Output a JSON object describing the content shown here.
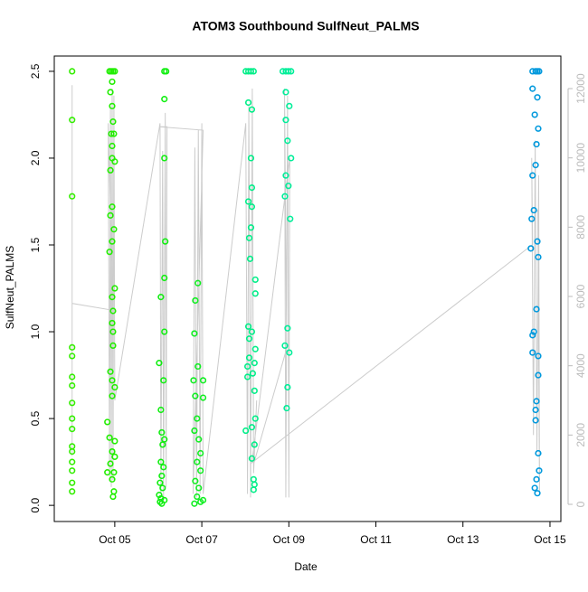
{
  "chart_data": {
    "type": "scatter",
    "title": "ATOM3 Southbound SulfNeut_PALMS",
    "x_label": "Date",
    "y_label": "SulfNeut_PALMS",
    "xlim": [
      3.61,
      15.25
    ],
    "ylim": [
      -0.093,
      2.588
    ],
    "y2lim": [
      -496,
      12940
    ],
    "xticks": [
      {
        "value": 5,
        "label": "Oct 05"
      },
      {
        "value": 7,
        "label": "Oct 07"
      },
      {
        "value": 9,
        "label": "Oct 09"
      },
      {
        "value": 11,
        "label": "Oct 11"
      },
      {
        "value": 13,
        "label": "Oct 13"
      },
      {
        "value": 15,
        "label": "Oct 15"
      }
    ],
    "yticks": [
      {
        "value": 0,
        "label": "0.0"
      },
      0.5,
      {
        "value": 1,
        "label": "1.0"
      },
      1.5,
      {
        "value": 2,
        "label": "2.0"
      },
      2.5
    ],
    "y2ticks": [
      0,
      2000,
      4000,
      6000,
      8000,
      10000,
      12000
    ],
    "series": [
      {
        "type": "line",
        "axis": "y2",
        "color": "#cccccc",
        "x": [
          4.02,
          4.02,
          4.02,
          4.96,
          4.85,
          4.88,
          4.9,
          4.92,
          4.94,
          4.96,
          4.98,
          5.0,
          6.04,
          6.06,
          6.1,
          6.12,
          6.16,
          6.18,
          6.2,
          6.02,
          7.03,
          6.8,
          6.84,
          6.88,
          6.92,
          6.96,
          7.0,
          7.03,
          8.01,
          8.05,
          8.08,
          8.12,
          8.16,
          8.19,
          8.26,
          8.2,
          8.95,
          8.9,
          8.93,
          8.97,
          9.0,
          9.02,
          8.15,
          14.6,
          14.58,
          14.62,
          14.66,
          14.7,
          14.74,
          14.76,
          14.72
        ],
        "values": [
          1400,
          12100,
          5800,
          5600,
          11000,
          800,
          11500,
          500,
          12000,
          700,
          11800,
          3000,
          11000,
          300,
          10200,
          200,
          11300,
          500,
          10900,
          10900,
          10800,
          300,
          10300,
          200,
          10800,
          300,
          11000,
          300,
          11000,
          300,
          11500,
          200,
          12000,
          900,
          3000,
          1200,
          4500,
          12000,
          200,
          11800,
          200,
          10000,
          1200,
          7500,
          10000,
          2000,
          10500,
          1500,
          9500,
          300,
          8500
        ]
      },
      {
        "color": "#33ee00",
        "x": [
          4.02,
          4.02,
          4.02,
          4.02,
          4.02,
          4.02,
          4.02,
          4.02,
          4.02,
          4.02,
          4.02,
          4.02,
          4.02,
          4.02,
          4.02,
          4.02
        ],
        "values": [
          2.5,
          2.22,
          1.78,
          0.91,
          0.86,
          0.74,
          0.69,
          0.59,
          0.5,
          0.44,
          0.34,
          0.31,
          0.25,
          0.2,
          0.13,
          0.08
        ]
      },
      {
        "color": "#22ee00",
        "x": [
          4.88,
          4.92,
          4.96,
          5.0,
          4.94,
          4.9,
          4.94,
          4.96,
          4.92,
          4.98,
          4.94,
          4.94,
          5.0,
          4.9,
          4.94,
          4.9,
          4.98,
          4.94,
          4.88,
          5.0,
          4.94,
          4.96,
          4.94,
          4.96,
          4.96,
          4.9,
          4.94,
          5.0,
          4.94,
          4.83,
          4.88,
          5.0,
          4.94,
          5.0,
          4.9,
          4.98,
          4.83,
          4.94,
          4.98,
          4.96
        ],
        "values": [
          2.5,
          2.5,
          2.5,
          2.5,
          2.44,
          2.38,
          2.3,
          2.21,
          2.14,
          2.14,
          2.07,
          2.0,
          1.98,
          1.93,
          1.72,
          1.67,
          1.59,
          1.52,
          1.46,
          1.25,
          1.2,
          1.12,
          1.05,
          1.0,
          0.92,
          0.77,
          0.72,
          0.68,
          0.63,
          0.48,
          0.39,
          0.37,
          0.31,
          0.28,
          0.24,
          0.19,
          0.19,
          0.15,
          0.08,
          0.05
        ]
      },
      {
        "color": "#11ee11",
        "x": [
          6.14,
          6.18,
          6.14,
          6.14,
          6.16,
          6.14,
          6.06,
          6.14,
          6.02,
          6.12,
          6.06,
          6.08,
          6.14,
          6.1,
          6.06,
          6.12,
          6.08,
          6.04,
          6.1,
          6.02,
          6.06,
          6.04,
          6.08,
          6.14
        ],
        "values": [
          2.5,
          2.5,
          2.34,
          2.0,
          1.52,
          1.31,
          1.2,
          1.0,
          0.82,
          0.72,
          0.55,
          0.42,
          0.38,
          0.35,
          0.25,
          0.22,
          0.17,
          0.13,
          0.1,
          0.06,
          0.04,
          0.02,
          0.01,
          0.03
        ]
      },
      {
        "color": "#11ee22",
        "x": [
          6.91,
          6.85,
          6.83,
          6.91,
          7.03,
          6.81,
          6.85,
          7.03,
          6.89,
          6.83,
          6.93,
          6.97,
          6.89,
          6.97,
          6.85,
          6.93,
          6.89,
          6.97,
          6.83,
          7.03
        ],
        "values": [
          1.28,
          1.18,
          0.99,
          0.8,
          0.72,
          0.72,
          0.63,
          0.62,
          0.5,
          0.43,
          0.38,
          0.3,
          0.25,
          0.2,
          0.14,
          0.1,
          0.05,
          0.02,
          0.01,
          0.03
        ]
      },
      {
        "color": "#00ee88",
        "x": [
          8.01,
          8.07,
          8.13,
          8.19,
          8.07,
          8.15,
          8.13,
          8.15,
          8.07,
          8.15,
          8.13,
          8.09,
          8.11,
          8.23,
          8.23,
          8.07,
          8.15,
          8.09,
          8.23,
          8.09,
          8.21,
          8.05,
          8.17,
          8.05,
          8.21,
          8.23,
          8.15,
          8.01,
          8.21,
          8.15,
          8.19,
          8.21,
          8.19
        ],
        "values": [
          2.5,
          2.5,
          2.5,
          2.5,
          2.32,
          2.28,
          2.0,
          1.83,
          1.75,
          1.72,
          1.6,
          1.54,
          1.42,
          1.3,
          1.22,
          1.03,
          1.0,
          0.96,
          0.9,
          0.85,
          0.82,
          0.8,
          0.76,
          0.74,
          0.66,
          0.5,
          0.45,
          0.43,
          0.35,
          0.27,
          0.15,
          0.12,
          0.09
        ]
      },
      {
        "color": "#00ee99",
        "x": [
          8.86,
          8.93,
          8.99,
          9.05,
          8.93,
          9.01,
          8.93,
          8.97,
          9.05,
          8.93,
          8.99,
          8.91,
          9.03,
          8.97,
          8.91,
          9.01,
          8.97,
          8.95
        ],
        "values": [
          2.5,
          2.5,
          2.5,
          2.5,
          2.38,
          2.3,
          2.22,
          2.1,
          2.0,
          1.9,
          1.84,
          1.78,
          1.65,
          1.02,
          0.92,
          0.88,
          0.68,
          0.56
        ]
      },
      {
        "color": "#0099dd",
        "x": [
          14.6,
          14.67,
          14.71,
          14.75,
          14.6,
          14.71,
          14.65,
          14.73,
          14.69,
          14.67,
          14.6,
          14.63,
          14.58,
          14.71,
          14.56,
          14.73,
          14.69,
          14.63,
          14.6,
          14.6,
          14.73,
          14.73,
          14.69,
          14.67,
          14.67,
          14.73,
          14.75,
          14.69,
          14.65,
          14.71
        ],
        "values": [
          2.5,
          2.5,
          2.5,
          2.5,
          2.4,
          2.35,
          2.25,
          2.17,
          2.08,
          1.96,
          1.9,
          1.7,
          1.65,
          1.52,
          1.48,
          1.43,
          1.13,
          1.0,
          0.98,
          0.88,
          0.86,
          0.75,
          0.6,
          0.55,
          0.49,
          0.3,
          0.2,
          0.15,
          0.1,
          0.07
        ]
      }
    ]
  }
}
